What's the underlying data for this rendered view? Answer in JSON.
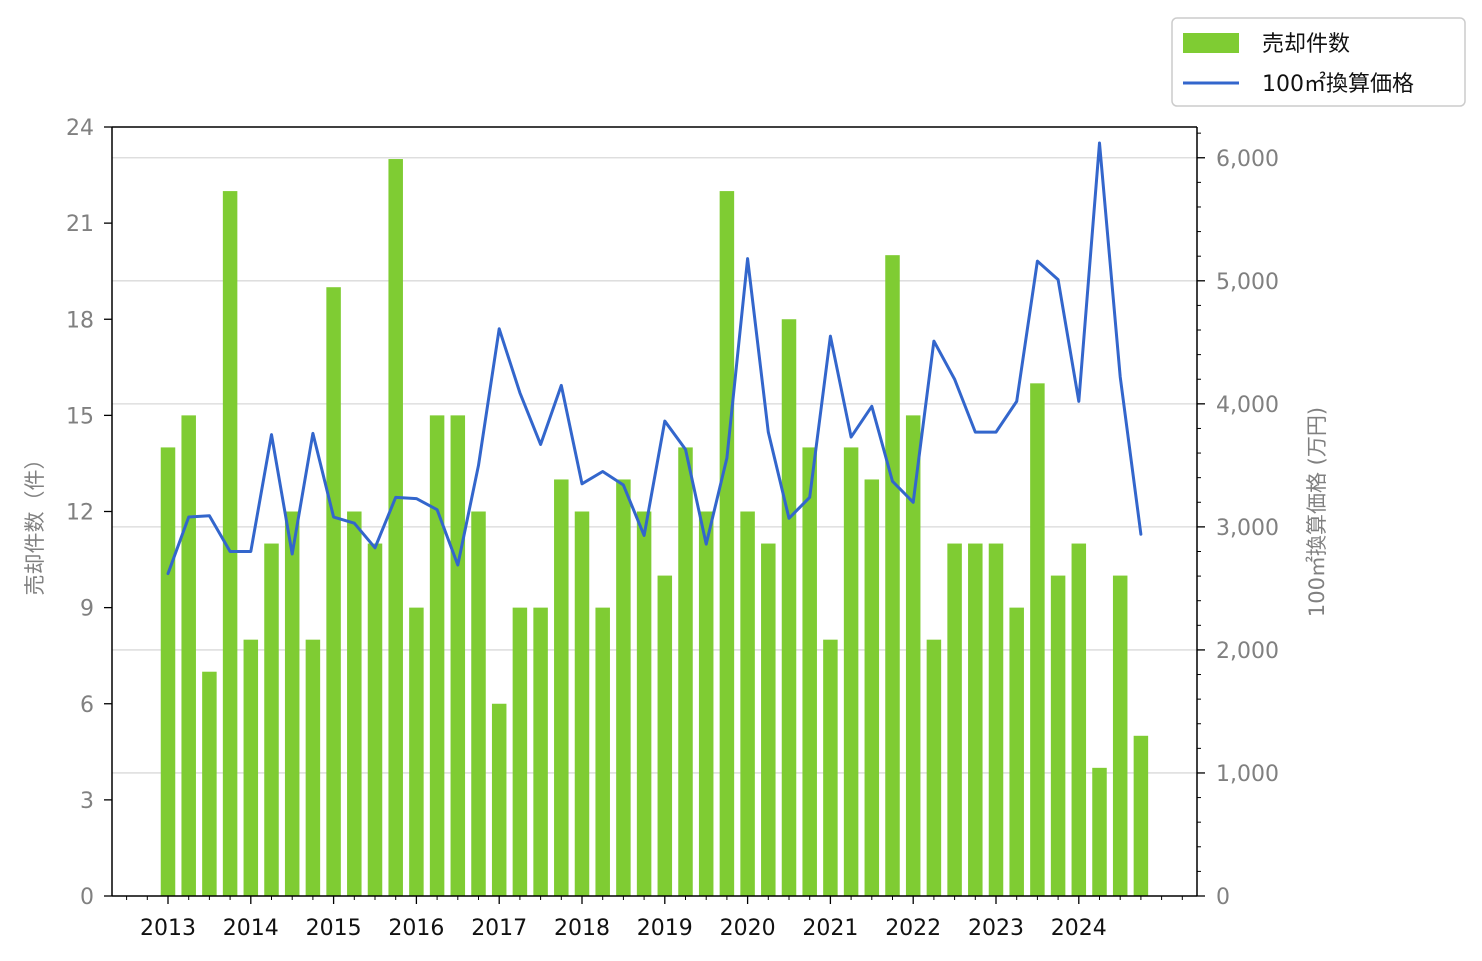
{
  "chart_data": {
    "type": "bar+line",
    "title": "",
    "x_ticks": [
      "2013",
      "2014",
      "2015",
      "2016",
      "2017",
      "2018",
      "2019",
      "2020",
      "2021",
      "2022",
      "2023",
      "2024"
    ],
    "x_start": 2013,
    "points_per_year": 4,
    "series": [
      {
        "name": "売却件数",
        "type": "bar",
        "axis": "left",
        "color": "#7fcc33",
        "values": [
          14,
          15,
          7,
          22,
          8,
          11,
          12,
          8,
          19,
          12,
          11,
          23,
          9,
          15,
          15,
          12,
          6,
          9,
          9,
          13,
          12,
          9,
          13,
          12,
          10,
          14,
          12,
          22,
          12,
          11,
          18,
          14,
          8,
          14,
          13,
          20,
          15,
          8,
          11,
          11,
          11,
          9,
          16,
          10,
          11,
          4,
          10,
          5
        ]
      },
      {
        "name": "100㎡換算価格",
        "type": "line",
        "axis": "right",
        "color": "#3366cc",
        "values": [
          2620,
          3080,
          3090,
          2800,
          2800,
          3750,
          2780,
          3760,
          3080,
          3030,
          2830,
          3240,
          3230,
          3140,
          2690,
          3500,
          4610,
          4090,
          3670,
          4150,
          3350,
          3450,
          3340,
          2930,
          3860,
          3630,
          2860,
          3560,
          5180,
          3770,
          3070,
          3240,
          4550,
          3730,
          3980,
          3370,
          3200,
          4510,
          4200,
          3770,
          3770,
          4020,
          5160,
          5010,
          4020,
          6120,
          4220,
          2940
        ]
      }
    ],
    "left_axis": {
      "label": "売却件数（件）",
      "ylim": [
        0,
        24
      ],
      "ticks": [
        "0",
        "3",
        "6",
        "9",
        "12",
        "15",
        "18",
        "21",
        "24"
      ]
    },
    "right_axis": {
      "label": "100㎡換算価格 (万円)",
      "ylim": [
        0,
        6250
      ],
      "ticks": [
        "0",
        "1,000",
        "2,000",
        "3,000",
        "4,000",
        "5,000",
        "6,000"
      ]
    },
    "grid": "horizontal (right axis)",
    "legend": {
      "placement": "top-right",
      "entries": [
        "売却件数",
        "100㎡換算価格"
      ]
    }
  }
}
